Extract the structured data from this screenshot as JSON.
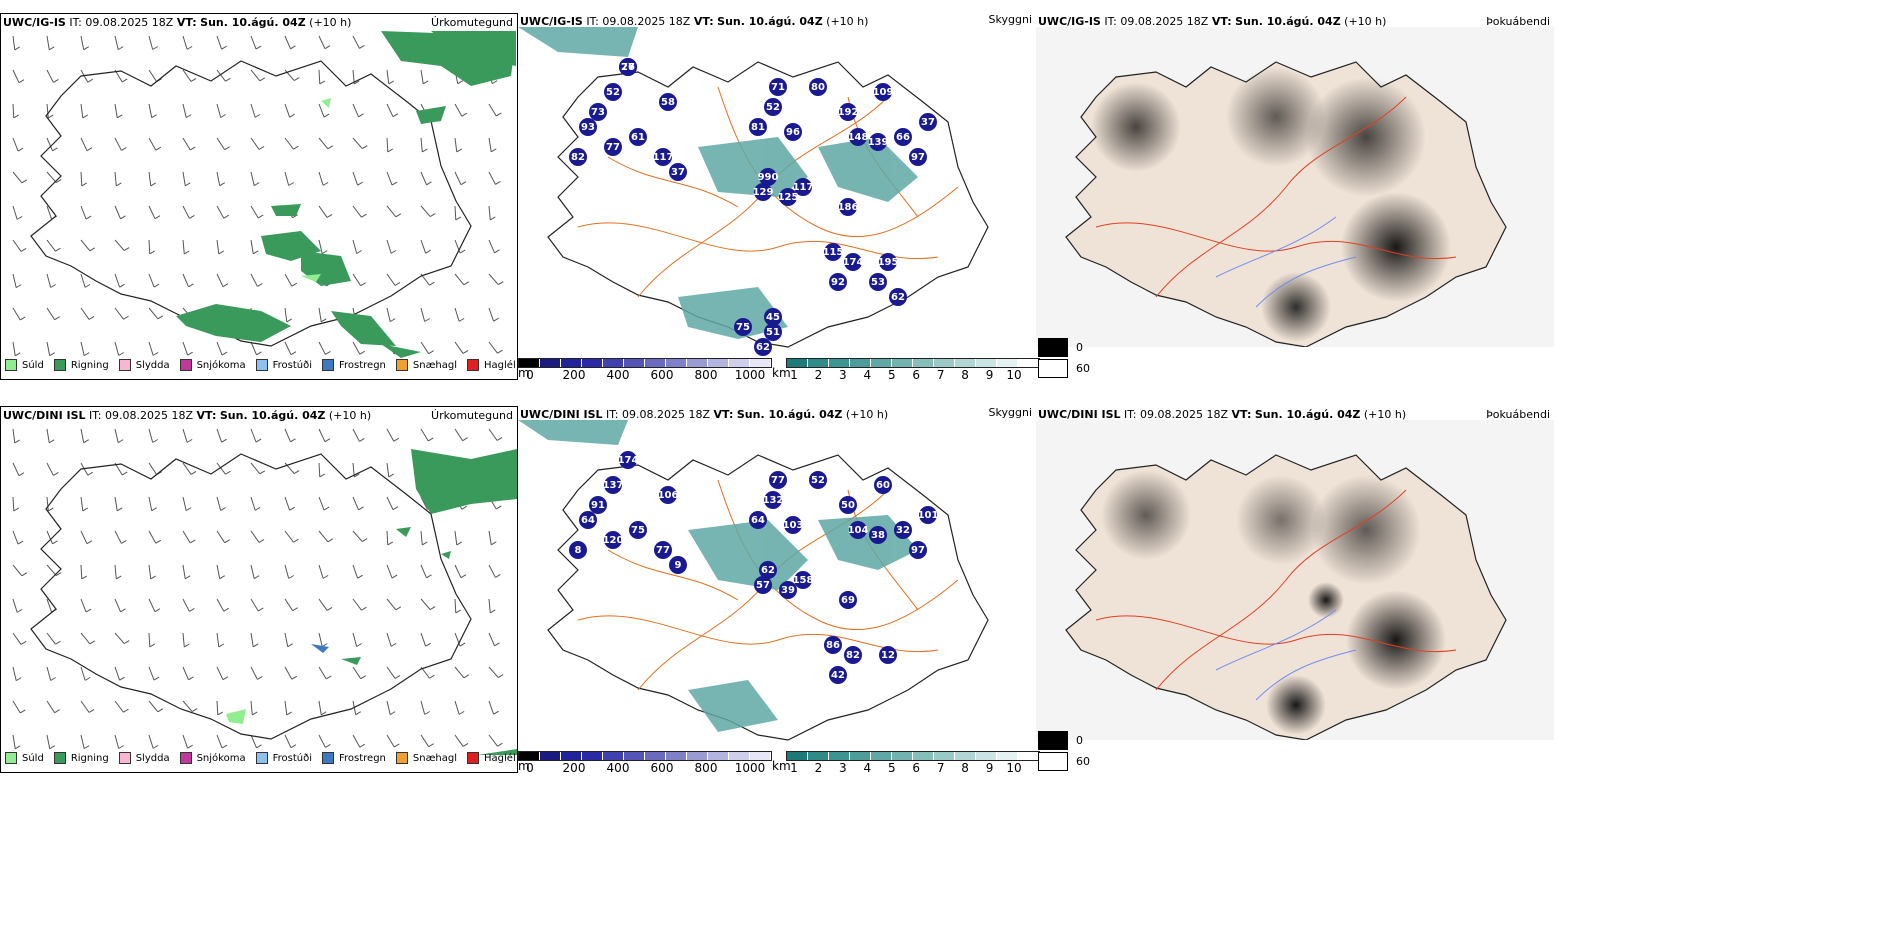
{
  "rows": [
    {
      "model": "UWC/IG-IS",
      "init_label": "IT:",
      "init": "09.08.2025 18Z",
      "valid_label": "VT:",
      "valid": "Sun. 10.ágú. 04Z",
      "lead": "(+10 h)",
      "heights": [
        "77",
        "52",
        "73",
        "58",
        "93",
        "61",
        "77",
        "82",
        "117",
        "37",
        "71",
        "52",
        "81",
        "80",
        "192",
        "109",
        "96",
        "148",
        "139",
        "66",
        "37",
        "97",
        "990",
        "129",
        "125",
        "117",
        "186",
        "115",
        "174",
        "195",
        "92",
        "53",
        "62",
        "45",
        "75",
        "51",
        "62",
        "26"
      ],
      "precip_title": "Úrkomutegund",
      "cloud_title": "Þokuábendi",
      "visibility_title": "Skyggni"
    },
    {
      "model": "UWC/DINI ISL",
      "init_label": "IT:",
      "init": "09.08.2025 18Z",
      "valid_label": "VT:",
      "valid": "Sun. 10.ágú. 04Z",
      "lead": "(+10 h)",
      "heights": [
        "174",
        "137",
        "91",
        "106",
        "64",
        "75",
        "120",
        "8",
        "77",
        "9",
        "77",
        "132",
        "64",
        "52",
        "50",
        "60",
        "103",
        "104",
        "38",
        "32",
        "101",
        "97",
        "62",
        "57",
        "39",
        "158",
        "69",
        "86",
        "82",
        "12",
        "42"
      ],
      "precip_title": "Úrkomutegund",
      "cloud_title": "Þokuábendi",
      "visibility_title": "Skyggni"
    }
  ],
  "precip_legend": [
    {
      "label": "Súld",
      "color": "#90ee90"
    },
    {
      "label": "Rigning",
      "color": "#3a9a5c"
    },
    {
      "label": "Slydda",
      "color": "#f7b6d2"
    },
    {
      "label": "Snjókoma",
      "color": "#c0399a"
    },
    {
      "label": "Frostúði",
      "color": "#8ec1f0"
    },
    {
      "label": "Frostregn",
      "color": "#3d78c0"
    },
    {
      "label": "Snæhagl",
      "color": "#f0a030"
    },
    {
      "label": "Haglél",
      "color": "#e02020"
    }
  ],
  "height_bar": {
    "unit": "m",
    "ticks": [
      "0",
      "200",
      "400",
      "600",
      "800",
      "1000"
    ],
    "colors": [
      "#000000",
      "#1a1a80",
      "#22229a",
      "#2a2aa8",
      "#4040b0",
      "#5555b8",
      "#6a6ac0",
      "#8080c8",
      "#9a9ad4",
      "#b4b4e0",
      "#cfcfec",
      "#e6e6f6"
    ]
  },
  "vis_bar": {
    "unit": "km",
    "ticks": [
      "1",
      "2",
      "3",
      "4",
      "5",
      "6",
      "7",
      "8",
      "9",
      "10"
    ],
    "colors": [
      "#1e7a78",
      "#2e8b88",
      "#3c9592",
      "#4d9e9b",
      "#5fa8a5",
      "#72b3b0",
      "#86beba",
      "#9bc9c6",
      "#b2d6d3",
      "#cbe4e2",
      "#e4f2f1",
      "#ffffff"
    ]
  },
  "cloud_legend": [
    {
      "label": "0",
      "color": "#000000"
    },
    {
      "label": "60",
      "color": "#ffffff"
    }
  ],
  "colors": {
    "rain": "#3a9a5c",
    "drizzle": "#90ee90",
    "coast": "#222222",
    "roads": "#e07020",
    "land_fill": "#efe2d6",
    "lakes": "#6f8ef0",
    "ceiling": "#1a1a90",
    "visibility": "#5fa8a5"
  }
}
